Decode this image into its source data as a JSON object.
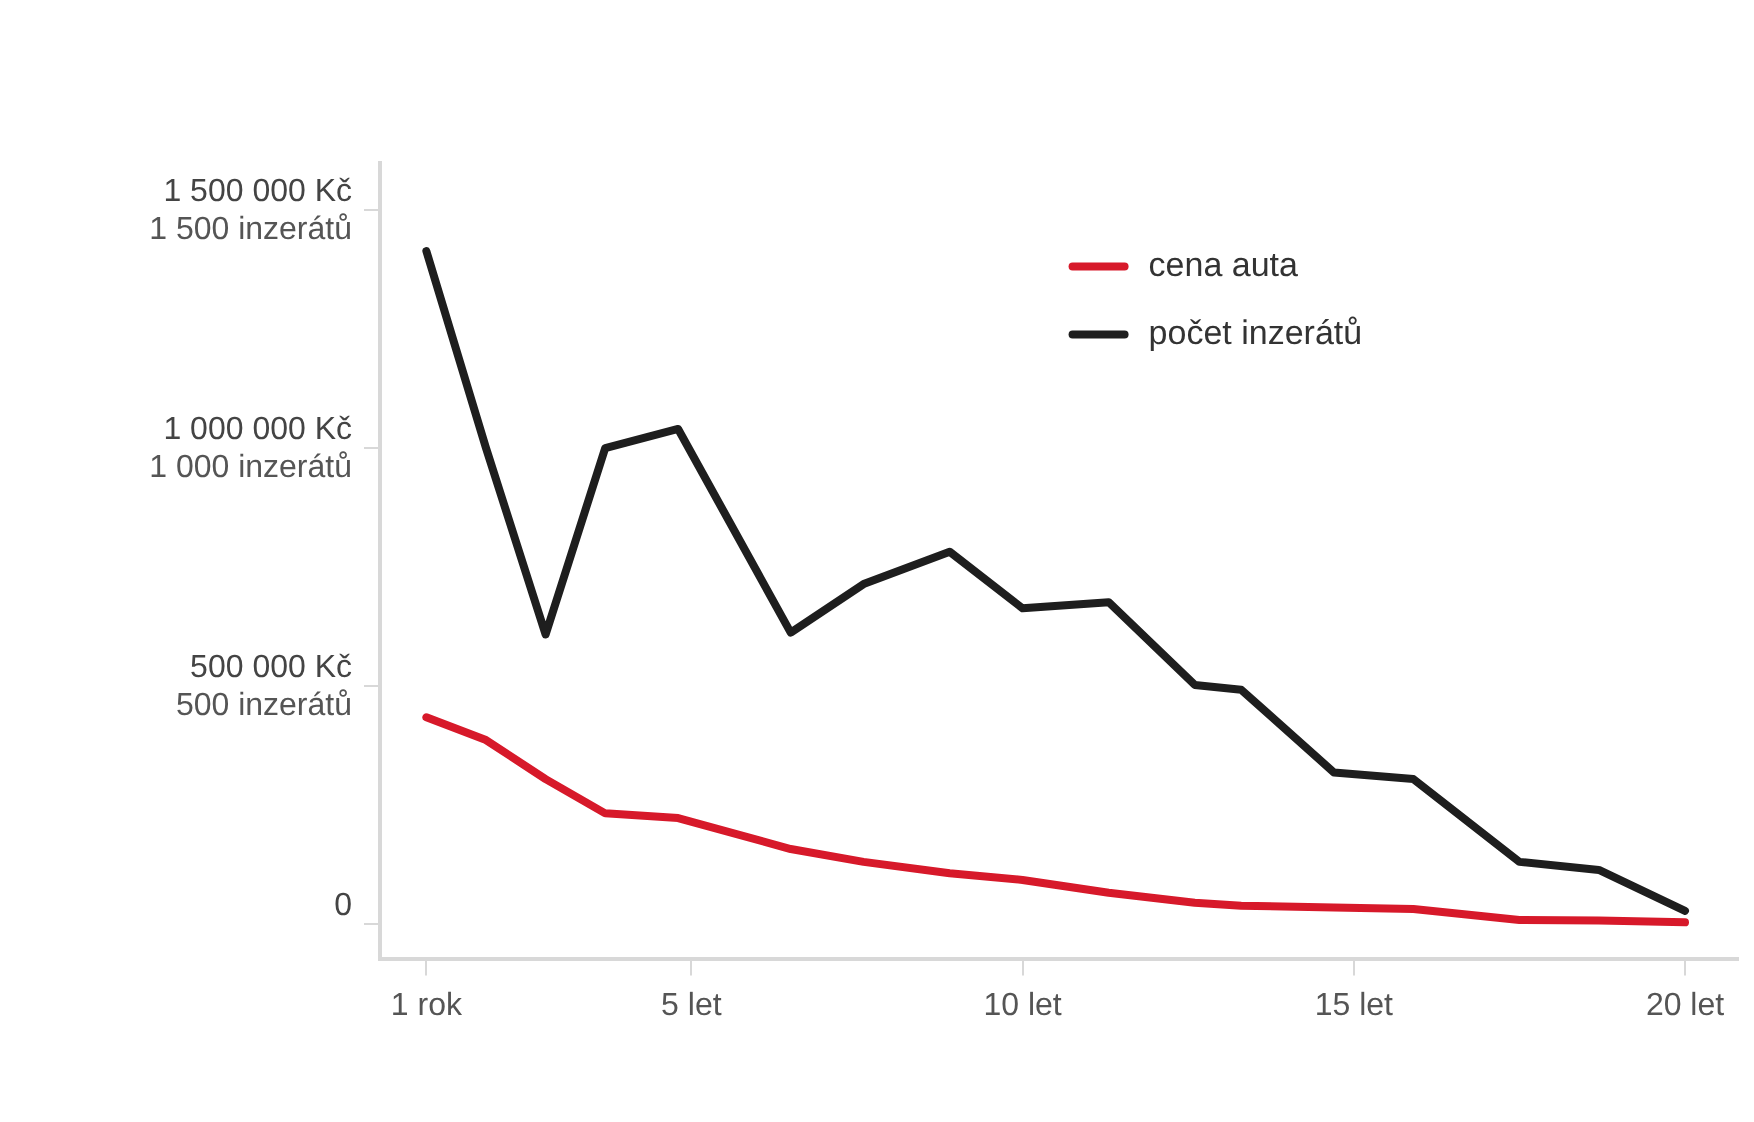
{
  "chart_data": {
    "type": "line",
    "x": [
      1.0,
      1.9,
      2.8,
      3.7,
      4.8,
      6.5,
      7.6,
      8.9,
      10.0,
      11.3,
      12.6,
      13.3,
      14.7,
      15.9,
      17.5,
      18.7,
      20.0
    ],
    "series": [
      {
        "name": "cena auta",
        "color": "#d7192a",
        "values": [
          434000,
          386000,
          304000,
          232000,
          222000,
          157000,
          130000,
          106000,
          92000,
          65000,
          44000,
          38000,
          34000,
          31000,
          8000,
          7000,
          3000
        ]
      },
      {
        "name": "počet inzerátů",
        "color": "#1e1e1e",
        "axis": "y2",
        "values": [
          1414,
          1000,
          608,
          1000,
          1040,
          612,
          714,
          782,
          663,
          676,
          502,
          492,
          318,
          304,
          130,
          113,
          27
        ]
      }
    ],
    "xlim": [
      0.3,
      20.8
    ],
    "xticks": [
      {
        "value": 1,
        "label": "1 rok"
      },
      {
        "value": 5,
        "label": "5 let"
      },
      {
        "value": 10,
        "label": "10 let"
      },
      {
        "value": 15,
        "label": "15 let"
      },
      {
        "value": 20,
        "label": "20 let"
      }
    ],
    "ylim": [
      -75000,
      1600000
    ],
    "yticks": [
      0,
      {
        "value": 500000,
        "label": "500 000 Kč"
      },
      {
        "value": 1000000,
        "label": "1 000 000 Kč"
      },
      {
        "value": 1500000,
        "label": "1 500 000 Kč"
      }
    ],
    "y2lim": [
      -75,
      1600
    ],
    "y2ticks": [
      {
        "value": 0,
        "label": null
      },
      {
        "value": 500,
        "label": "500 inzerátů"
      },
      {
        "value": 1000,
        "label": "1 000 inzerátů"
      },
      {
        "value": 1500,
        "label": "1 500 inzerátů"
      }
    ],
    "grid": false,
    "legend": "top right",
    "marker": "none",
    "line_style": "solid"
  }
}
